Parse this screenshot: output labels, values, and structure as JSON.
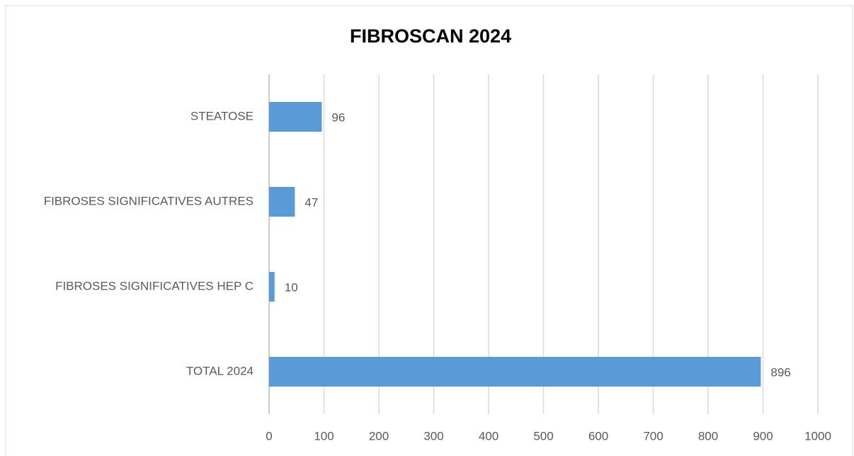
{
  "chart_data": {
    "type": "bar",
    "orientation": "horizontal",
    "title": "FIBROSCAN 2024",
    "categories": [
      "STEATOSE",
      "FIBROSES SIGNIFICATIVES AUTRES",
      "FIBROSES SIGNIFICATIVES HEP C",
      "TOTAL 2024"
    ],
    "values": [
      96,
      47,
      10,
      896
    ],
    "color": "#5b9bd5",
    "xlim": [
      0,
      1000
    ],
    "xticks": [
      0,
      100,
      200,
      300,
      400,
      500,
      600,
      700,
      800,
      900,
      1000
    ],
    "grid": true
  }
}
